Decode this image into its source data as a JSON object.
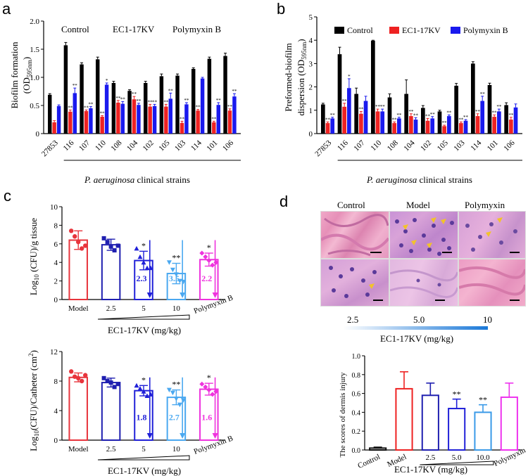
{
  "panels": {
    "a": "a",
    "b": "b",
    "c": "c",
    "d": "d"
  },
  "colors": {
    "control": "#000000",
    "ec1": "#ee2222",
    "polymyxin": "#1a1aee",
    "c_model": "#e8343c",
    "c_25": "#1f1fb0",
    "c_5": "#2020d8",
    "c_10": "#4aa8f0",
    "c_poly": "#ee33dd",
    "d_control": "#111111",
    "d_model": "#ee2222",
    "d_25": "#1f1fb0",
    "d_5": "#2020d8",
    "d_10": "#3a9ae8",
    "d_poly": "#ee33ee"
  },
  "panel_a": {
    "group_labels": [
      "Control",
      "EC1-17KV",
      "Polymyxin B"
    ],
    "ylabel_main": "Biofilm formation",
    "ylabel_unit": "(OD",
    "ylabel_sub": "595nm",
    "ylabel_close": ")",
    "xgroup_label_italic": "P. aeruginosa",
    "xgroup_label_rest": " clinical strains"
  },
  "panel_b": {
    "legend": [
      "Control",
      "EC1-17KV",
      "Polymyxin B"
    ],
    "ylabel_line1": "Preformed-biofilm",
    "ylabel_line2": "dispersion (OD",
    "ylabel_sub": "595nm",
    "ylabel_close": ")",
    "xgroup_label_italic": "P. aeruginosa",
    "xgroup_label_rest": " clinical strains"
  },
  "panel_c1": {
    "ylabel_pre": "Log",
    "ylabel_sub": "10",
    "ylabel_post": " (CFU)/g tissue",
    "xlabel": "EC1-17KV (mg/kg)",
    "reductions": [
      "2.3",
      "3.5",
      "2.2"
    ]
  },
  "panel_c2": {
    "ylabel_pre": "Log",
    "ylabel_sub": "10",
    "ylabel_post": "(CFU)/Catheter (cm",
    "ylabel_sup": "2",
    "ylabel_close": ")",
    "xlabel": "EC1-17KV (mg/kg)",
    "reductions": [
      "1.8",
      "2.7",
      "1.6"
    ]
  },
  "panel_d_hist": {
    "col_labels": [
      "Control",
      "Model",
      "Polymyxin"
    ],
    "dose_labels": [
      "2.5",
      "5.0",
      "10"
    ],
    "xlabel": "EC1-17KV (mg/kg)"
  },
  "panel_d_chart": {
    "ylabel": "The scores of dermis injury",
    "xlabel": "EC1-17KV (mg/kg)"
  },
  "chart_data": [
    {
      "type": "bar",
      "panel": "a",
      "categories": [
        "27853",
        "116",
        "107",
        "110",
        "108",
        "104",
        "102",
        "105",
        "103",
        "114",
        "101",
        "106"
      ],
      "series": [
        {
          "name": "Control",
          "values": [
            0.69,
            1.57,
            1.23,
            1.32,
            0.9,
            0.76,
            0.9,
            1.02,
            1.03,
            1.15,
            1.33,
            1.38
          ]
        },
        {
          "name": "EC1-17KV",
          "values": [
            0.2,
            0.39,
            0.4,
            0.3,
            0.55,
            0.61,
            0.48,
            0.48,
            0.19,
            0.41,
            0.2,
            0.41
          ]
        },
        {
          "name": "Polymyxin B",
          "values": [
            0.49,
            0.72,
            0.45,
            0.87,
            0.53,
            0.51,
            0.49,
            0.62,
            0.52,
            0.98,
            0.51,
            0.66
          ]
        }
      ],
      "errors": [
        [
          0.02,
          0.05,
          0.03,
          0.04,
          0.03,
          0.02,
          0.03,
          0.04,
          0.03,
          0.02,
          0.03,
          0.05
        ],
        [
          0.03,
          0.03,
          0.02,
          0.02,
          0.04,
          0.05,
          0.04,
          0.04,
          0.03,
          0.02,
          0.02,
          0.03
        ],
        [
          0.02,
          0.09,
          0.03,
          0.03,
          0.04,
          0.03,
          0.03,
          0.1,
          0.03,
          0.02,
          0.04,
          0.05
        ]
      ],
      "stars": [
        [
          "",
          "",
          "",
          "",
          "",
          "",
          "",
          "",
          "",
          "",
          "",
          ""
        ],
        [
          "",
          "**",
          "**",
          "**",
          "**",
          "**",
          "**",
          "**",
          "**",
          "**",
          "**",
          "**"
        ],
        [
          "",
          "**",
          "**",
          "*",
          "**",
          "**",
          "**",
          "**",
          "**",
          "",
          "**",
          "**"
        ]
      ],
      "ylim": [
        0,
        2.0
      ],
      "yticks": [
        "0",
        "0.5",
        "1.0",
        "1.5",
        "2.0"
      ]
    },
    {
      "type": "bar",
      "panel": "b",
      "categories": [
        "27853",
        "116",
        "107",
        "110",
        "108",
        "104",
        "102",
        "105",
        "103",
        "114",
        "101",
        "106"
      ],
      "series": [
        {
          "name": "Control",
          "values": [
            1.25,
            3.4,
            1.7,
            3.98,
            1.55,
            1.7,
            1.1,
            0.95,
            2.05,
            3.0,
            2.08,
            1.22
          ]
        },
        {
          "name": "EC1-17KV",
          "values": [
            0.45,
            1.15,
            0.85,
            0.95,
            0.45,
            0.75,
            0.55,
            0.32,
            0.45,
            0.75,
            0.72,
            0.6
          ]
        },
        {
          "name": "Polymyxin B",
          "values": [
            0.65,
            1.95,
            1.4,
            0.95,
            0.65,
            0.6,
            0.65,
            0.75,
            0.55,
            1.4,
            0.95,
            1.12
          ]
        }
      ],
      "errors": [
        [
          0.05,
          0.3,
          0.25,
          0.02,
          0.15,
          0.6,
          0.1,
          0.05,
          0.1,
          0.08,
          0.08,
          0.1
        ],
        [
          0.05,
          0.15,
          0.1,
          0.1,
          0.05,
          0.1,
          0.1,
          0.04,
          0.05,
          0.1,
          0.08,
          0.1
        ],
        [
          0.05,
          0.4,
          0.2,
          0.1,
          0.05,
          0.08,
          0.08,
          0.05,
          0.05,
          0.2,
          0.1,
          0.15
        ]
      ],
      "stars": [
        [
          "",
          "",
          "",
          "",
          "",
          "",
          "",
          "",
          "",
          "",
          "",
          ""
        ],
        [
          "**",
          "**",
          "**",
          "**",
          "**",
          "**",
          "**",
          "**",
          "**",
          "**",
          "**",
          "**"
        ],
        [
          "**",
          "*",
          "",
          "**",
          "**",
          "**",
          "**",
          "**",
          "**",
          "**",
          "**",
          ""
        ]
      ],
      "ylim": [
        0,
        5
      ],
      "yticks": [
        "0",
        "1",
        "2",
        "3",
        "4",
        "5"
      ],
      "legend_position": "top"
    },
    {
      "type": "bar",
      "panel": "c-top",
      "categories": [
        "Model",
        "2.5",
        "5",
        "10",
        "Polymyxin B"
      ],
      "values": [
        6.4,
        5.9,
        4.2,
        2.8,
        4.3
      ],
      "errors": [
        1.0,
        0.6,
        1.0,
        1.1,
        0.7
      ],
      "points": [
        [
          7.4,
          6.8,
          6.2,
          5.5,
          5.8
        ],
        [
          6.6,
          6.2,
          5.7,
          5.3,
          5.8
        ],
        [
          5.5,
          4.6,
          4.0,
          3.4,
          3.4
        ],
        [
          4.0,
          3.2,
          2.7,
          2.0,
          1.9
        ],
        [
          5.0,
          4.6,
          4.2,
          3.7,
          4.0
        ]
      ],
      "stars": [
        "",
        "",
        "*",
        "**",
        "*"
      ],
      "ylim": [
        0,
        10
      ],
      "yticks": [
        "0",
        "2",
        "4",
        "6",
        "8",
        "10"
      ]
    },
    {
      "type": "bar",
      "panel": "c-bottom",
      "categories": [
        "Model",
        "2.5",
        "5",
        "10",
        "Polymyxin B"
      ],
      "values": [
        8.5,
        7.8,
        6.7,
        5.8,
        6.9
      ],
      "errors": [
        0.6,
        0.6,
        0.7,
        1.0,
        0.8
      ],
      "points": [
        [
          9.3,
          8.6,
          8.4,
          8.0,
          8.8
        ],
        [
          8.4,
          8.0,
          7.8,
          7.2,
          7.6
        ],
        [
          7.4,
          7.0,
          6.6,
          6.0,
          6.2
        ],
        [
          6.8,
          6.4,
          5.6,
          4.8,
          5.4
        ],
        [
          7.6,
          7.2,
          6.8,
          6.2,
          6.6
        ]
      ],
      "stars": [
        "",
        "",
        "*",
        "**",
        "*"
      ],
      "ylim": [
        0,
        12
      ],
      "yticks": [
        "0",
        "4",
        "8",
        "12"
      ]
    },
    {
      "type": "bar",
      "panel": "d",
      "categories": [
        "Control",
        "Model",
        "2.5",
        "5.0",
        "10.0",
        "Polymyxin"
      ],
      "values": [
        0.02,
        0.65,
        0.58,
        0.44,
        0.4,
        0.56
      ],
      "errors": [
        0.01,
        0.18,
        0.13,
        0.1,
        0.08,
        0.15
      ],
      "stars": [
        "",
        "",
        "",
        "**",
        "**",
        ""
      ],
      "ylim": [
        0,
        1.0
      ],
      "yticks": [
        "0.0",
        "0.2",
        "0.4",
        "0.6",
        "0.8",
        "1.0"
      ]
    }
  ]
}
